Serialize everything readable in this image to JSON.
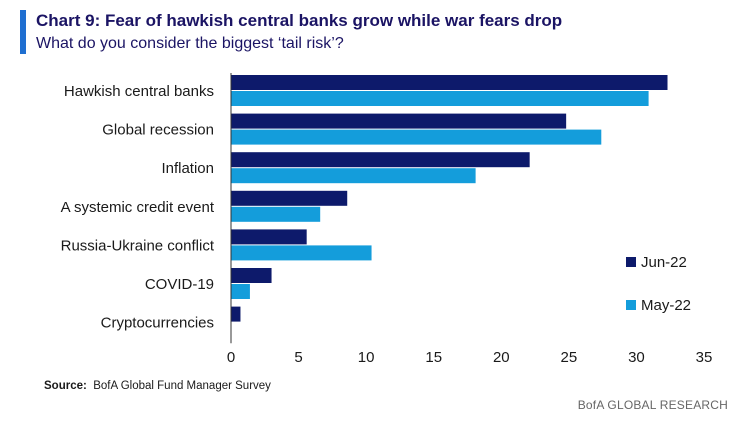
{
  "header": {
    "title": "Chart 9: Fear of hawkish central banks grow while war fears drop",
    "subtitle": "What do you consider the biggest ‘tail risk’?"
  },
  "colors": {
    "accent": "#1f6fd1",
    "series_dark": "#0d1a6b",
    "series_light": "#149ddb"
  },
  "chart_data": {
    "type": "bar",
    "orientation": "horizontal",
    "categories": [
      "Hawkish central banks",
      "Global recession",
      "Inflation",
      "A systemic credit event",
      "Russia-Ukraine conflict",
      "COVID-19",
      "Cryptocurrencies"
    ],
    "series": [
      {
        "name": "Jun-22",
        "color": "#0d1a6b",
        "values": [
          32.3,
          24.8,
          22.1,
          8.6,
          5.6,
          3.0,
          0.7
        ]
      },
      {
        "name": "May-22",
        "color": "#149ddb",
        "values": [
          30.9,
          27.4,
          18.1,
          6.6,
          10.4,
          1.4,
          0
        ]
      }
    ],
    "xlim": [
      0,
      35
    ],
    "xticks": [
      0,
      5,
      10,
      15,
      20,
      25,
      30,
      35
    ],
    "grid": false,
    "legend_position": "right"
  },
  "source": {
    "label": "Source:",
    "text": "BofA Global Fund Manager Survey"
  },
  "footer": {
    "brand": "BofA GLOBAL RESEARCH"
  }
}
